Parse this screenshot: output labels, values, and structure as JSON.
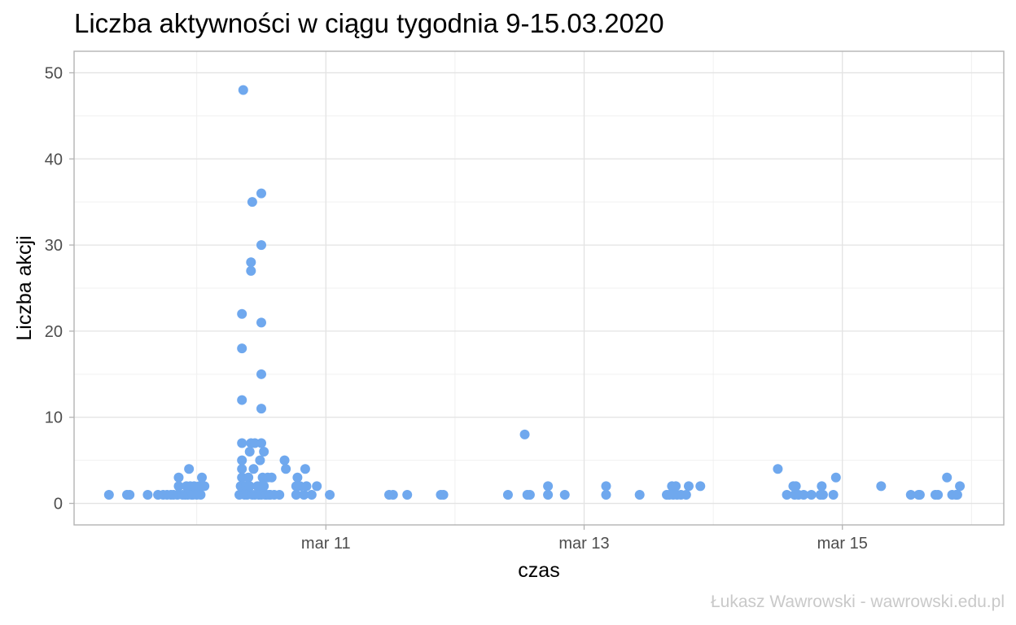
{
  "chart_data": {
    "type": "scatter",
    "title": "Liczba aktywności w ciągu tygodnia 9-15.03.2020",
    "xlabel": "czas",
    "ylabel": "Liczba akcji",
    "caption": "Łukasz Wawrowski - wawrowski.edu.pl",
    "point_color": "#6fa8ee",
    "xlim": [
      9.05,
      16.25
    ],
    "ylim": [
      -2.5,
      52.5
    ],
    "x_ticks": [
      {
        "value": 11,
        "label": "mar 11"
      },
      {
        "value": 13,
        "label": "mar 13"
      },
      {
        "value": 15,
        "label": "mar 15"
      }
    ],
    "x_minor_ticks": [
      10,
      12,
      14,
      16
    ],
    "y_ticks": [
      0,
      10,
      20,
      30,
      40,
      50
    ],
    "y_minor_ticks": [
      5,
      15,
      25,
      35,
      45
    ],
    "grid": true,
    "points": [
      [
        9.32,
        1
      ],
      [
        9.46,
        1
      ],
      [
        9.48,
        1
      ],
      [
        9.62,
        1
      ],
      [
        9.7,
        1
      ],
      [
        9.74,
        1
      ],
      [
        9.77,
        1
      ],
      [
        9.8,
        1
      ],
      [
        9.82,
        1
      ],
      [
        9.85,
        1
      ],
      [
        9.86,
        2
      ],
      [
        9.86,
        3
      ],
      [
        9.89,
        1
      ],
      [
        9.91,
        1
      ],
      [
        9.92,
        2
      ],
      [
        9.93,
        1
      ],
      [
        9.94,
        4
      ],
      [
        9.95,
        2
      ],
      [
        9.96,
        1
      ],
      [
        9.97,
        1
      ],
      [
        9.98,
        2
      ],
      [
        10.0,
        1
      ],
      [
        10.02,
        2
      ],
      [
        10.03,
        1
      ],
      [
        10.04,
        3
      ],
      [
        10.06,
        2
      ],
      [
        10.33,
        1
      ],
      [
        10.34,
        2
      ],
      [
        10.35,
        3
      ],
      [
        10.35,
        4
      ],
      [
        10.35,
        5
      ],
      [
        10.35,
        7
      ],
      [
        10.35,
        12
      ],
      [
        10.35,
        18
      ],
      [
        10.35,
        22
      ],
      [
        10.36,
        48
      ],
      [
        10.37,
        1
      ],
      [
        10.38,
        2
      ],
      [
        10.39,
        1
      ],
      [
        10.4,
        3
      ],
      [
        10.41,
        2
      ],
      [
        10.41,
        6
      ],
      [
        10.42,
        7
      ],
      [
        10.42,
        27
      ],
      [
        10.42,
        28
      ],
      [
        10.43,
        35
      ],
      [
        10.43,
        1
      ],
      [
        10.44,
        4
      ],
      [
        10.45,
        1
      ],
      [
        10.45,
        7
      ],
      [
        10.47,
        2
      ],
      [
        10.48,
        1
      ],
      [
        10.49,
        2
      ],
      [
        10.49,
        5
      ],
      [
        10.5,
        1
      ],
      [
        10.5,
        7
      ],
      [
        10.5,
        11
      ],
      [
        10.5,
        15
      ],
      [
        10.5,
        21
      ],
      [
        10.5,
        30
      ],
      [
        10.5,
        36
      ],
      [
        10.51,
        3
      ],
      [
        10.52,
        2
      ],
      [
        10.52,
        6
      ],
      [
        10.53,
        1
      ],
      [
        10.54,
        1
      ],
      [
        10.55,
        3
      ],
      [
        10.56,
        1
      ],
      [
        10.57,
        1
      ],
      [
        10.58,
        3
      ],
      [
        10.6,
        1
      ],
      [
        10.64,
        1
      ],
      [
        10.68,
        5
      ],
      [
        10.69,
        4
      ],
      [
        10.77,
        1
      ],
      [
        10.77,
        2
      ],
      [
        10.78,
        3
      ],
      [
        10.8,
        2
      ],
      [
        10.83,
        1
      ],
      [
        10.84,
        4
      ],
      [
        10.85,
        2
      ],
      [
        10.89,
        1
      ],
      [
        10.93,
        2
      ],
      [
        11.03,
        1
      ],
      [
        11.49,
        1
      ],
      [
        11.52,
        1
      ],
      [
        11.63,
        1
      ],
      [
        11.89,
        1
      ],
      [
        11.91,
        1
      ],
      [
        12.41,
        1
      ],
      [
        12.54,
        8
      ],
      [
        12.56,
        1
      ],
      [
        12.58,
        1
      ],
      [
        12.72,
        1
      ],
      [
        12.72,
        2
      ],
      [
        12.85,
        1
      ],
      [
        13.17,
        1
      ],
      [
        13.17,
        2
      ],
      [
        13.43,
        1
      ],
      [
        13.64,
        1
      ],
      [
        13.66,
        1
      ],
      [
        13.68,
        2
      ],
      [
        13.69,
        1
      ],
      [
        13.71,
        2
      ],
      [
        13.72,
        1
      ],
      [
        13.75,
        1
      ],
      [
        13.79,
        1
      ],
      [
        13.81,
        2
      ],
      [
        13.9,
        2
      ],
      [
        14.5,
        4
      ],
      [
        14.57,
        1
      ],
      [
        14.62,
        2
      ],
      [
        14.63,
        1
      ],
      [
        14.64,
        2
      ],
      [
        14.66,
        1
      ],
      [
        14.7,
        1
      ],
      [
        14.76,
        1
      ],
      [
        14.83,
        1
      ],
      [
        14.84,
        2
      ],
      [
        14.85,
        1
      ],
      [
        14.93,
        1
      ],
      [
        14.95,
        3
      ],
      [
        15.3,
        2
      ],
      [
        15.53,
        1
      ],
      [
        15.59,
        1
      ],
      [
        15.6,
        1
      ],
      [
        15.72,
        1
      ],
      [
        15.74,
        1
      ],
      [
        15.81,
        3
      ],
      [
        15.85,
        1
      ],
      [
        15.88,
        1
      ],
      [
        15.89,
        1
      ],
      [
        15.91,
        2
      ]
    ]
  }
}
